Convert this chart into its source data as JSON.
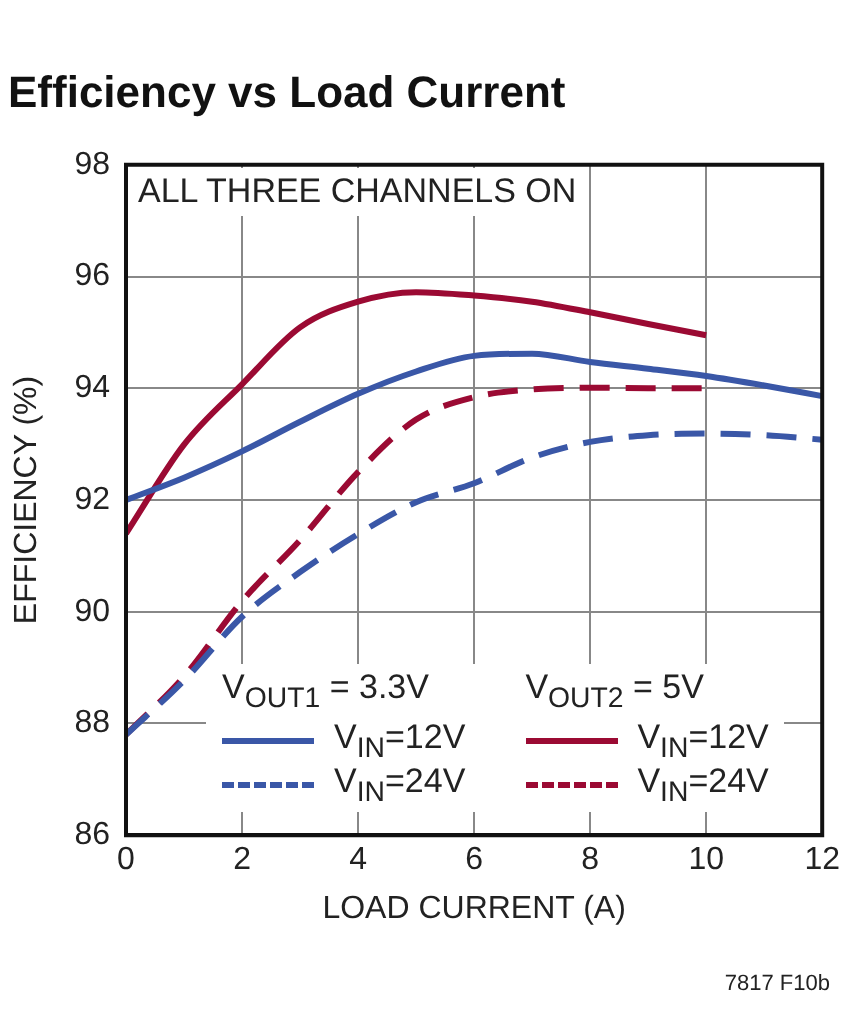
{
  "chart_data": {
    "type": "line",
    "title": "Efficiency vs Load Current",
    "xlabel": "LOAD CURRENT (A)",
    "ylabel": "EFFICIENCY (%)",
    "annotations": [
      "ALL THREE CHANNELS ON",
      "V$_{OUT1}$ = 3.3V",
      "V$_{OUT2}$ = 5V",
      "7817 F10b"
    ],
    "x": [
      0,
      1,
      2,
      3,
      4,
      5,
      6,
      7,
      8,
      9,
      10,
      11,
      12
    ],
    "series": [
      {
        "name": "V$_{IN}$=12V",
        "color": "#3a57a7",
        "line_style": "solid",
        "values": [
          92.0,
          92.4,
          92.87,
          93.4,
          93.9,
          94.3,
          94.58,
          94.62,
          94.47,
          94.35,
          94.22,
          94.05,
          93.86
        ]
      },
      {
        "name": "V$_{IN}$=24V",
        "color": "#3a57a7",
        "line_style": "dashed",
        "values": [
          87.8,
          88.77,
          89.91,
          90.71,
          91.39,
          91.96,
          92.3,
          92.76,
          93.04,
          93.16,
          93.19,
          93.16,
          93.08
        ]
      },
      {
        "name": "V$_{IN}$=12V",
        "color": "#9b0a33",
        "line_style": "solid",
        "values": [
          91.4,
          92.99,
          94.07,
          95.09,
          95.55,
          95.72,
          95.66,
          95.55,
          95.36,
          95.15,
          94.95,
          null,
          null
        ]
      },
      {
        "name": "V$_{IN}$=24V",
        "color": "#9b0a33",
        "line_style": "dashed",
        "values": [
          87.8,
          88.84,
          90.19,
          91.28,
          92.5,
          93.44,
          93.84,
          93.98,
          94.01,
          94.0,
          94.0,
          null,
          null
        ]
      }
    ],
    "xlim": [
      0,
      12
    ],
    "xticks": [
      0,
      2,
      4,
      6,
      8,
      10,
      12
    ],
    "ylim": [
      86,
      98
    ],
    "yticks": [
      86,
      88,
      90,
      92,
      94,
      96,
      98
    ],
    "grid": true,
    "legend": "bottom",
    "marker": "none"
  }
}
